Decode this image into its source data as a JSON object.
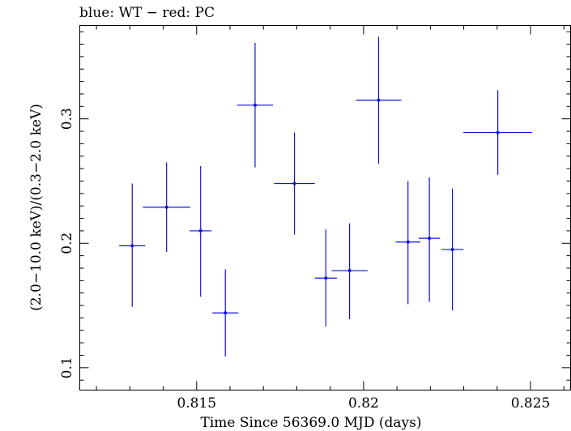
{
  "chart_data": {
    "type": "scatter",
    "title": "blue: WT − red: PC",
    "xlabel": "Time Since 56369.0 MJD (days)",
    "ylabel": "(2.0−10.0 keV)/(0.3−2.0 keV)",
    "xlim": [
      0.8115,
      0.8262
    ],
    "ylim": [
      0.082,
      0.375
    ],
    "xticks": [
      {
        "value": 0.815,
        "label": "0.815"
      },
      {
        "value": 0.82,
        "label": "0.82"
      },
      {
        "value": 0.825,
        "label": "0.825"
      }
    ],
    "yticks": [
      {
        "value": 0.1,
        "label": "0.1"
      },
      {
        "value": 0.2,
        "label": "0.2"
      },
      {
        "value": 0.3,
        "label": "0.3"
      }
    ],
    "xminor_step": 0.001,
    "yminor_step": 0.01,
    "series": [
      {
        "name": "WT",
        "color": "#1111dd",
        "points": [
          {
            "x": 0.81307,
            "xerr": 0.00039,
            "y": 0.198,
            "ylo": 0.149,
            "yhi": 0.248
          },
          {
            "x": 0.8141,
            "xerr": 0.00071,
            "y": 0.229,
            "ylo": 0.193,
            "yhi": 0.265
          },
          {
            "x": 0.81512,
            "xerr": 0.00033,
            "y": 0.21,
            "ylo": 0.157,
            "yhi": 0.262
          },
          {
            "x": 0.81586,
            "xerr": 0.00039,
            "y": 0.144,
            "ylo": 0.109,
            "yhi": 0.179
          },
          {
            "x": 0.81675,
            "xerr": 0.00054,
            "y": 0.311,
            "ylo": 0.261,
            "yhi": 0.361
          },
          {
            "x": 0.81793,
            "xerr": 0.00061,
            "y": 0.248,
            "ylo": 0.207,
            "yhi": 0.289
          },
          {
            "x": 0.81887,
            "xerr": 0.00033,
            "y": 0.172,
            "ylo": 0.133,
            "yhi": 0.211
          },
          {
            "x": 0.81958,
            "xerr": 0.00054,
            "y": 0.178,
            "ylo": 0.139,
            "yhi": 0.216
          },
          {
            "x": 0.82045,
            "xerr": 0.00068,
            "y": 0.315,
            "ylo": 0.264,
            "yhi": 0.366
          },
          {
            "x": 0.82133,
            "xerr": 0.00037,
            "y": 0.201,
            "ylo": 0.151,
            "yhi": 0.25
          },
          {
            "x": 0.82197,
            "xerr": 0.00032,
            "y": 0.204,
            "ylo": 0.153,
            "yhi": 0.253
          },
          {
            "x": 0.82266,
            "xerr": 0.00033,
            "y": 0.195,
            "ylo": 0.146,
            "yhi": 0.244
          },
          {
            "x": 0.82402,
            "xerr": 0.00103,
            "y": 0.289,
            "ylo": 0.255,
            "yhi": 0.323
          }
        ]
      }
    ]
  }
}
